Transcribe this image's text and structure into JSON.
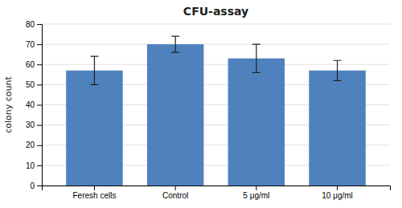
{
  "chart_data": {
    "type": "bar",
    "title": "CFU-assay",
    "categories": [
      "Feresh cells",
      "Control",
      "5 μg/ml",
      "10 μg/ml"
    ],
    "values": [
      57,
      70,
      63,
      57
    ],
    "errors": [
      7,
      4,
      7,
      5
    ],
    "color": "#4F81BD",
    "ylabel": "colony count",
    "ylim": [
      0,
      80
    ],
    "yticks": [
      0,
      10,
      20,
      30,
      40,
      50,
      60,
      70,
      80
    ],
    "grid": true
  }
}
